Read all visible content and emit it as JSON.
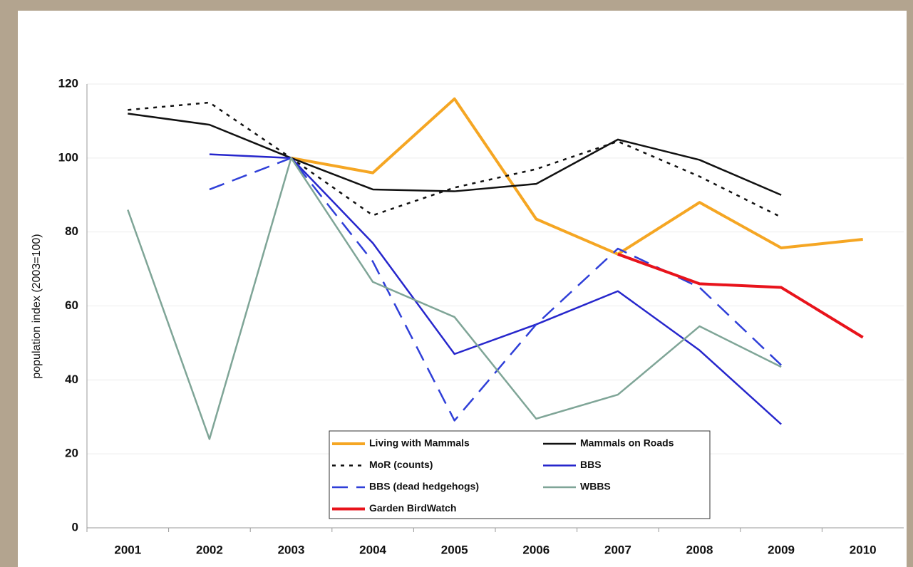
{
  "chart_data": {
    "type": "line",
    "y_label": "population index (2003=100)",
    "categories": [
      "2001",
      "2002",
      "2003",
      "2004",
      "2005",
      "2006",
      "2007",
      "2008",
      "2009",
      "2010"
    ],
    "ylim": [
      0,
      120
    ],
    "yticks": [
      0,
      20,
      40,
      60,
      80,
      100,
      120
    ],
    "grid": true,
    "series": [
      {
        "name": "Living with Mammals",
        "color": "#f5a623",
        "style": "solid",
        "width": 4,
        "values": [
          null,
          null,
          100,
          96,
          116,
          83.5,
          74,
          88,
          75.7,
          78
        ]
      },
      {
        "name": "Mammals on Roads",
        "color": "#111111",
        "style": "solid",
        "width": 2.5,
        "values": [
          112,
          109,
          100,
          91.5,
          91,
          93,
          105,
          99.5,
          90,
          null
        ]
      },
      {
        "name": "MoR (counts)",
        "color": "#111111",
        "style": "dotted",
        "width": 2.5,
        "values": [
          113,
          115,
          100,
          84.5,
          92,
          97,
          104.5,
          95,
          84,
          null
        ]
      },
      {
        "name": "BBS",
        "color": "#2626cc",
        "style": "solid",
        "width": 2.5,
        "values": [
          null,
          101,
          100,
          77,
          47,
          55,
          64,
          48,
          28,
          null
        ]
      },
      {
        "name": "BBS (dead hedgehogs)",
        "color": "#2f3fd8",
        "style": "dashed",
        "width": 2.5,
        "values": [
          null,
          91.5,
          100,
          72,
          29,
          55,
          75.5,
          65,
          44,
          null
        ]
      },
      {
        "name": "WBBS",
        "color": "#7fa597",
        "style": "solid",
        "width": 2.5,
        "values": [
          86,
          24,
          100,
          66.5,
          57,
          29.5,
          36,
          54.5,
          43.5,
          null
        ]
      },
      {
        "name": "Garden BirdWatch",
        "color": "#e8131b",
        "style": "solid",
        "width": 4,
        "values": [
          null,
          null,
          null,
          null,
          null,
          null,
          74,
          66,
          65,
          51.5
        ]
      }
    ]
  }
}
